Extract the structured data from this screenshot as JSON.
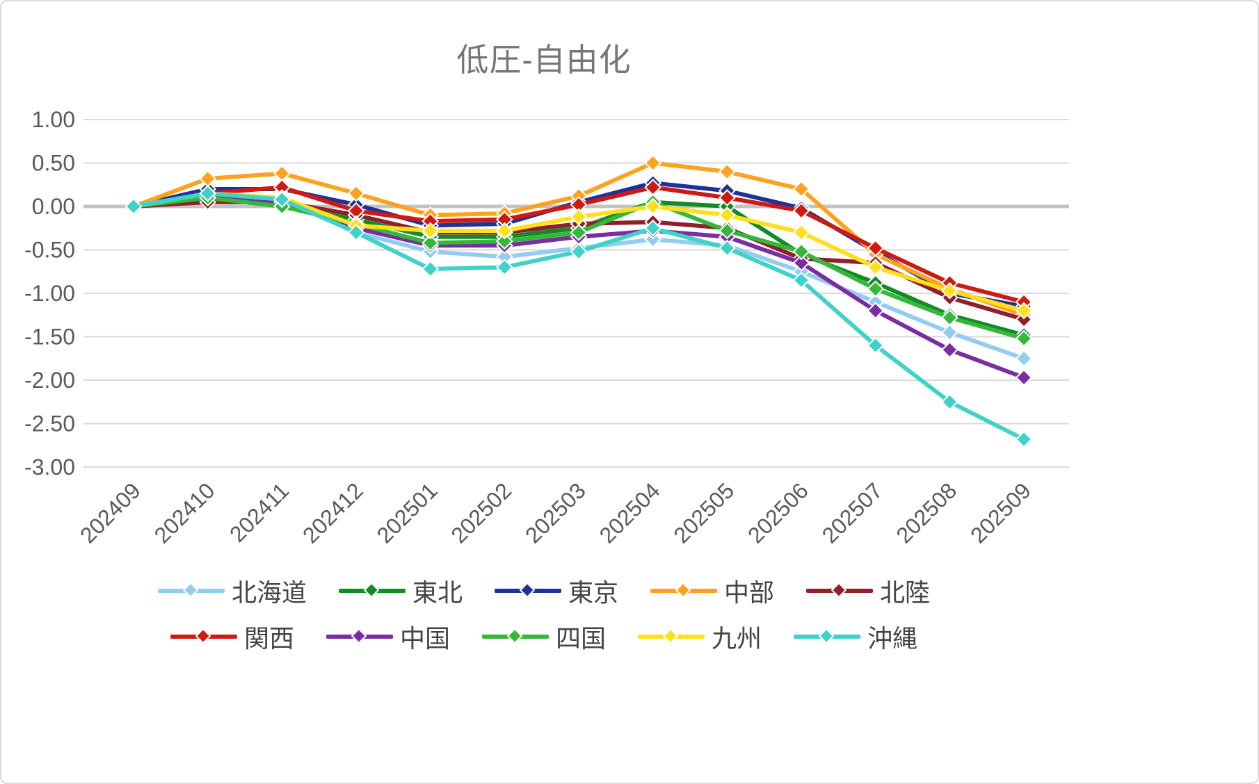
{
  "chart_data": {
    "type": "line",
    "title": "低圧-自由化",
    "xlabel": "",
    "ylabel": "",
    "ylim": [
      -3.0,
      1.0
    ],
    "y_tick_step": 0.5,
    "y_tick_labels": [
      "1.00",
      "0.50",
      "0.00",
      "-0.50",
      "-1.00",
      "-1.50",
      "-2.00",
      "-2.50",
      "-3.00"
    ],
    "grid": true,
    "legend_position": "bottom",
    "marker": "diamond",
    "categories": [
      "202409",
      "202410",
      "202411",
      "202412",
      "202501",
      "202502",
      "202503",
      "202504",
      "202505",
      "202506",
      "202507",
      "202508",
      "202509"
    ],
    "series": [
      {
        "id": "hokkaido",
        "name": "北海道",
        "color": "#92CDF1",
        "values": [
          0.0,
          0.15,
          0.08,
          -0.3,
          -0.52,
          -0.58,
          -0.48,
          -0.38,
          -0.45,
          -0.75,
          -1.1,
          -1.45,
          -1.75
        ]
      },
      {
        "id": "tohoku",
        "name": "東北",
        "color": "#128A26",
        "values": [
          0.0,
          0.1,
          0.0,
          -0.15,
          -0.35,
          -0.35,
          -0.25,
          0.05,
          0.0,
          -0.55,
          -0.88,
          -1.25,
          -1.48
        ]
      },
      {
        "id": "tokyo",
        "name": "東京",
        "color": "#1F3296",
        "values": [
          0.0,
          0.2,
          0.2,
          0.02,
          -0.22,
          -0.2,
          0.05,
          0.27,
          0.18,
          -0.02,
          -0.52,
          -1.0,
          -1.15
        ]
      },
      {
        "id": "chubu",
        "name": "中部",
        "color": "#FFA21E",
        "values": [
          0.0,
          0.32,
          0.38,
          0.15,
          -0.1,
          -0.08,
          0.12,
          0.5,
          0.4,
          0.2,
          -0.55,
          -0.95,
          -1.25
        ]
      },
      {
        "id": "hokuriku",
        "name": "北陸",
        "color": "#8E1F2B",
        "values": [
          0.0,
          0.05,
          0.05,
          -0.1,
          -0.3,
          -0.3,
          -0.2,
          -0.18,
          -0.25,
          -0.6,
          -0.65,
          -1.05,
          -1.3
        ]
      },
      {
        "id": "kansai",
        "name": "関西",
        "color": "#CE1A14",
        "values": [
          0.0,
          0.15,
          0.22,
          -0.05,
          -0.17,
          -0.15,
          0.02,
          0.22,
          0.1,
          -0.05,
          -0.48,
          -0.88,
          -1.1
        ]
      },
      {
        "id": "chugoku",
        "name": "中国",
        "color": "#7A2DA0",
        "values": [
          0.0,
          0.1,
          0.05,
          -0.25,
          -0.45,
          -0.45,
          -0.35,
          -0.28,
          -0.35,
          -0.65,
          -1.2,
          -1.65,
          -1.97
        ]
      },
      {
        "id": "shikoku",
        "name": "四国",
        "color": "#35B83A",
        "values": [
          0.0,
          0.1,
          0.0,
          -0.2,
          -0.42,
          -0.4,
          -0.3,
          0.05,
          -0.28,
          -0.52,
          -0.95,
          -1.28,
          -1.52
        ]
      },
      {
        "id": "kyushu",
        "name": "九州",
        "color": "#FFE01E",
        "values": [
          0.0,
          0.15,
          0.1,
          -0.22,
          -0.28,
          -0.28,
          -0.12,
          0.0,
          -0.1,
          -0.3,
          -0.7,
          -0.97,
          -1.2
        ]
      },
      {
        "id": "okinawa",
        "name": "沖縄",
        "color": "#40D1C8",
        "values": [
          0.0,
          0.15,
          0.08,
          -0.3,
          -0.72,
          -0.7,
          -0.52,
          -0.25,
          -0.48,
          -0.85,
          -1.6,
          -2.25,
          -2.68
        ]
      }
    ],
    "styles": {
      "grid_color": "#d9d9d9",
      "zero_line_color": "#c3c3c3",
      "axis_label_color": "#595959",
      "title_color": "#767676"
    }
  }
}
